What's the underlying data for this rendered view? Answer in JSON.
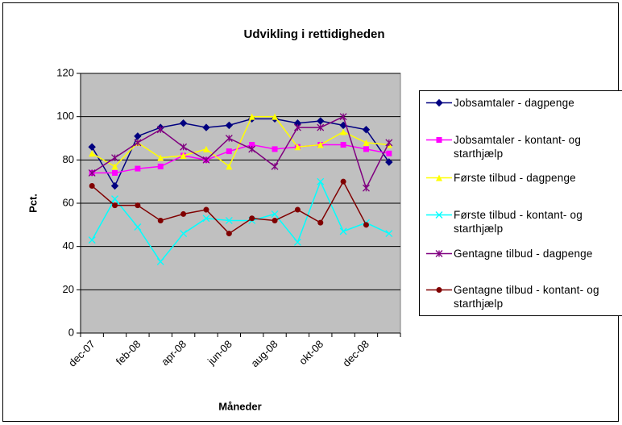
{
  "chart_data": {
    "type": "line",
    "title": "Udvikling i rettidigheden",
    "x_label": "Måneder",
    "y_label": "Pct.",
    "categories": [
      "dec-07",
      null,
      "feb-08",
      null,
      "apr-08",
      null,
      "jun-08",
      null,
      "aug-08",
      null,
      "okt-08",
      null,
      "dec-08",
      null
    ],
    "ylim": [
      0,
      120
    ],
    "yticks": [
      0,
      20,
      40,
      60,
      80,
      100,
      120
    ],
    "grid": true,
    "legend": "right",
    "series": [
      {
        "name": "Jobsamtaler - dagpenge",
        "color": "#000080",
        "marker": "diamond",
        "values": [
          86,
          68,
          91,
          95,
          97,
          95,
          96,
          99,
          99,
          97,
          98,
          96,
          94,
          79
        ]
      },
      {
        "name": "Jobsamtaler - kontant- og starthjælp",
        "color": "#ff00ff",
        "marker": "square",
        "values": [
          74,
          74,
          76,
          77,
          82,
          80,
          84,
          87,
          85,
          86,
          87,
          87,
          85,
          83
        ]
      },
      {
        "name": "Første tilbud - dagpenge",
        "color": "#ffff00",
        "marker": "triangle",
        "values": [
          83,
          77,
          88,
          81,
          82,
          85,
          77,
          100,
          100,
          86,
          87,
          93,
          88,
          87
        ]
      },
      {
        "name": "Første tilbud - kontant- og starthjælp",
        "color": "#00ffff",
        "marker": "x",
        "values": [
          43,
          62,
          49,
          33,
          46,
          53,
          52,
          52,
          55,
          42,
          70,
          47,
          51,
          46
        ]
      },
      {
        "name": "Gentagne tilbud - dagpenge",
        "color": "#800080",
        "marker": "star",
        "values": [
          74,
          81,
          88,
          94,
          86,
          80,
          90,
          85,
          77,
          95,
          95,
          100,
          67,
          88
        ]
      },
      {
        "name": "Gentagne tilbud - kontant- og starthjælp",
        "color": "#800000",
        "marker": "circle",
        "values": [
          68,
          59,
          59,
          52,
          55,
          57,
          46,
          53,
          52,
          57,
          51,
          70,
          50,
          null
        ]
      }
    ]
  }
}
